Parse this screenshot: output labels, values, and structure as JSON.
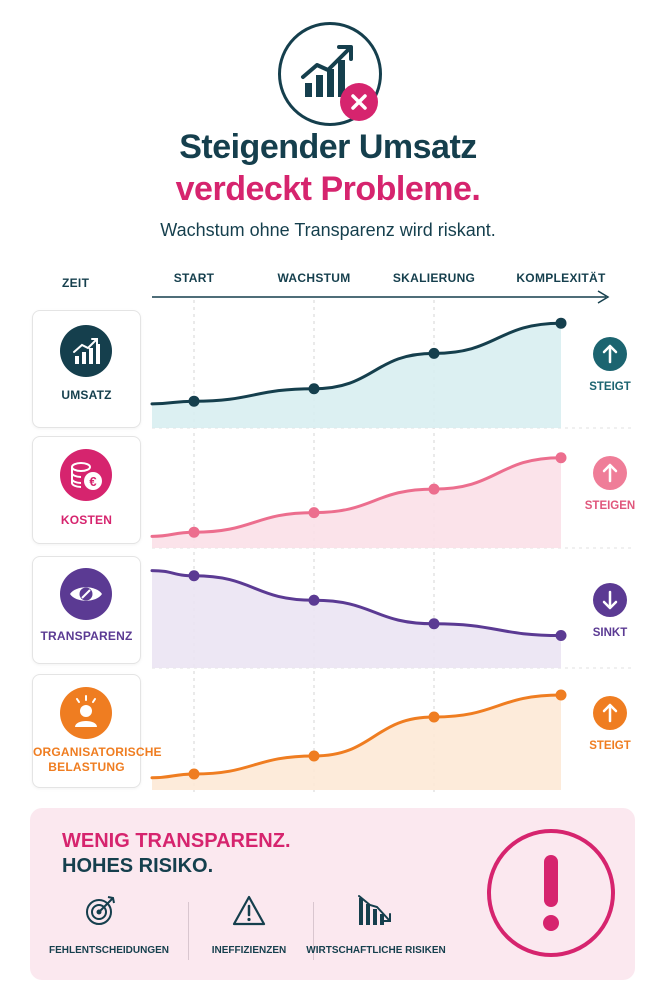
{
  "header": {
    "title_line1": "Steigender Umsatz",
    "title_line2": "verdeckt Probleme.",
    "subtitle": "Wachstum ohne Transparenz wird riskant.",
    "hero_icon": "growth-chart-with-x-icon"
  },
  "colors": {
    "navy": "#153f4d",
    "pink": "#d6246e",
    "rose": "#ec6e8e",
    "purple": "#5b3a93",
    "orange": "#ef7d21",
    "panel_bg": "#fbe8ef"
  },
  "chart_data": {
    "type": "line",
    "x_label": "ZEIT",
    "categories": [
      "START",
      "WACHSTUM",
      "SKALIERUNG",
      "KOMPLEXITÄT"
    ],
    "series": [
      {
        "name": "UMSATZ",
        "values": [
          2.0,
          3.2,
          6.6,
          9.5
        ],
        "trend": "STEIGT",
        "icon": "growth-chart-icon",
        "color": "#153f4d",
        "fill": "#d8eef1"
      },
      {
        "name": "KOSTEN",
        "values": [
          1.0,
          3.0,
          5.4,
          8.6
        ],
        "trend": "STEIGEN",
        "icon": "euro-coins-icon",
        "color": "#ec6e8e",
        "fill": "#fbe0e8"
      },
      {
        "name": "TRANSPARENZ",
        "values": [
          8.8,
          6.3,
          3.9,
          2.7
        ],
        "trend": "SINKT",
        "icon": "eye-blocked-icon",
        "color": "#5b3a93",
        "fill": "#ebe4f3"
      },
      {
        "name": "ORGANISATORISCHE BELASTUNG",
        "values": [
          1.0,
          2.8,
          6.7,
          8.9
        ],
        "trend": "STEIGT",
        "icon": "stressed-person-icon",
        "color": "#ef7d21",
        "fill": "#fde9d6"
      }
    ]
  },
  "summary": {
    "headline_pink": "WENIG TRANSPARENZ.",
    "headline_navy": "HOHES RISIKO.",
    "risks": [
      {
        "label": "FEHLENTSCHEIDUNGEN",
        "icon": "target-icon"
      },
      {
        "label": "INEFFIZIENZEN",
        "icon": "warning-triangle-icon"
      },
      {
        "label": "WIRTSCHAFTLICHE RISIKEN",
        "icon": "declining-chart-icon"
      }
    ],
    "alert_icon": "exclamation-icon"
  }
}
